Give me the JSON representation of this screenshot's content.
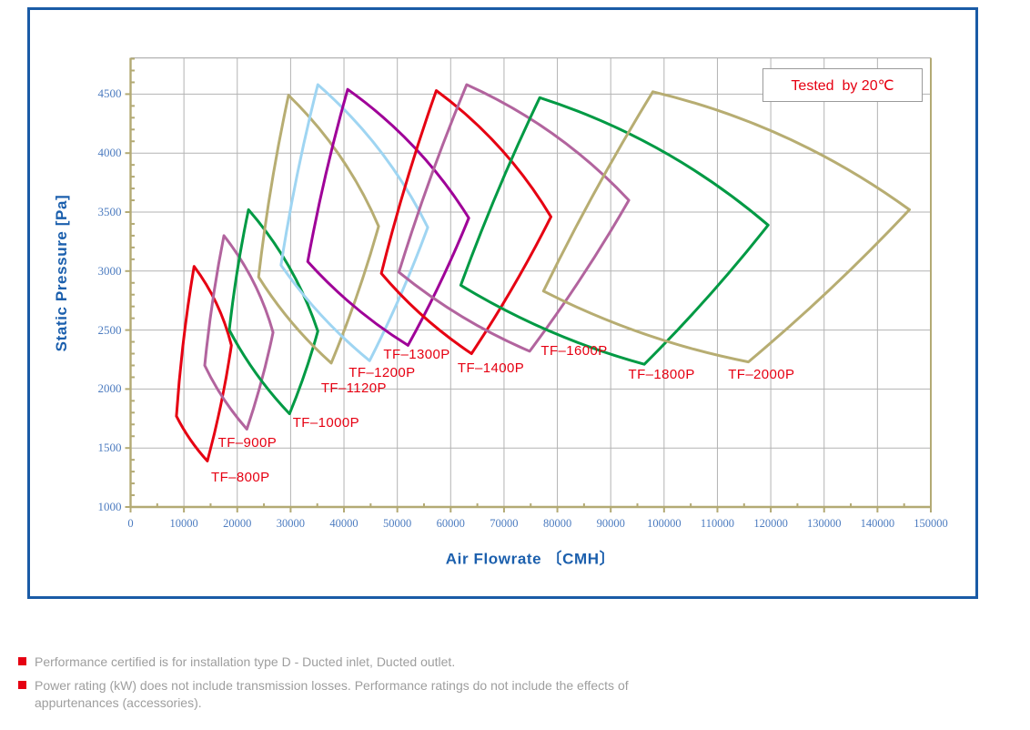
{
  "colors": {
    "outer_border_blue": "#1a5ba6",
    "axis_tan": "#b3aa74",
    "grid_gray": "#b3b3b3",
    "tick_label_blue": "#4d7cc0",
    "axis_title_blue": "#1b5fad",
    "label_red": "#e60012",
    "footnote_gray": "#9e9e9e",
    "legend_border_gray": "#9a9a9a"
  },
  "legend": {
    "text": "Tested  by 20℃"
  },
  "chart_data": {
    "type": "area",
    "subtype": "fan-performance-operating-envelopes",
    "title": "",
    "xlabel": "Air Flowrate 〔CMH〕",
    "ylabel": "Static Pressure [Pa]",
    "xlim": [
      0,
      150000
    ],
    "ylim": [
      1000,
      4800
    ],
    "grid": true,
    "x_ticks": [
      0,
      10000,
      20000,
      30000,
      40000,
      50000,
      60000,
      70000,
      80000,
      90000,
      100000,
      110000,
      120000,
      130000,
      140000,
      150000
    ],
    "y_ticks": [
      1000,
      1500,
      2000,
      2500,
      3000,
      3500,
      4000,
      4500
    ],
    "x_minor_step": 5000,
    "y_minor_step": 100,
    "envelope_vertex_order": [
      "top",
      "right",
      "bottom",
      "left"
    ],
    "units": {
      "x": "CMH",
      "y": "Pa"
    },
    "series": [
      {
        "name": "TF–800P",
        "color": "#e60012",
        "envelope": [
          [
            11900,
            3040
          ],
          [
            18900,
            2370
          ],
          [
            14400,
            1390
          ],
          [
            8600,
            1770
          ]
        ],
        "label_at": [
          15100,
          1320
        ]
      },
      {
        "name": "TF–900P",
        "color": "#b2649e",
        "envelope": [
          [
            17500,
            3300
          ],
          [
            26700,
            2480
          ],
          [
            21800,
            1660
          ],
          [
            13900,
            2200
          ]
        ],
        "label_at": [
          16400,
          1610
        ]
      },
      {
        "name": "TF–1000P",
        "color": "#009a44",
        "envelope": [
          [
            22100,
            3520
          ],
          [
            35100,
            2490
          ],
          [
            29800,
            1790
          ],
          [
            18500,
            2500
          ]
        ],
        "label_at": [
          30400,
          1780
        ]
      },
      {
        "name": "TF–1120P",
        "color": "#b7ad72",
        "envelope": [
          [
            29600,
            4490
          ],
          [
            46500,
            3380
          ],
          [
            37600,
            2220
          ],
          [
            24000,
            2950
          ]
        ],
        "label_at": [
          35700,
          2070
        ]
      },
      {
        "name": "TF–1200P",
        "color": "#9fd5f2",
        "envelope": [
          [
            35100,
            4580
          ],
          [
            55700,
            3370
          ],
          [
            44800,
            2240
          ],
          [
            28200,
            3050
          ]
        ],
        "label_at": [
          40900,
          2200
        ]
      },
      {
        "name": "TF–1300P",
        "color": "#9f0098",
        "envelope": [
          [
            40700,
            4540
          ],
          [
            63400,
            3450
          ],
          [
            52000,
            2370
          ],
          [
            33200,
            3080
          ]
        ],
        "label_at": [
          47400,
          2360
        ]
      },
      {
        "name": "TF–1400P",
        "color": "#e60012",
        "envelope": [
          [
            57300,
            4530
          ],
          [
            78800,
            3460
          ],
          [
            63900,
            2300
          ],
          [
            47000,
            2980
          ]
        ],
        "label_at": [
          61300,
          2240
        ]
      },
      {
        "name": "TF–1600P",
        "color": "#b2649e",
        "envelope": [
          [
            63000,
            4580
          ],
          [
            93400,
            3600
          ],
          [
            74800,
            2320
          ],
          [
            50300,
            2990
          ]
        ],
        "label_at": [
          76900,
          2390
        ]
      },
      {
        "name": "TF–1800P",
        "color": "#009a44",
        "envelope": [
          [
            76700,
            4470
          ],
          [
            119500,
            3390
          ],
          [
            96300,
            2210
          ],
          [
            61900,
            2880
          ]
        ],
        "label_at": [
          93300,
          2190
        ]
      },
      {
        "name": "TF–2000P",
        "color": "#b7ad72",
        "envelope": [
          [
            97900,
            4520
          ],
          [
            146000,
            3520
          ],
          [
            115800,
            2230
          ],
          [
            77400,
            2830
          ]
        ],
        "label_at": [
          112000,
          2190
        ]
      }
    ]
  },
  "footnotes": [
    {
      "lines": [
        "Performance certified is for installation type D - Ducted inlet, Ducted outlet."
      ]
    },
    {
      "lines": [
        "Power rating (kW) does not include transmission losses. Performance ratings do not include the effects of",
        "appurtenances (accessories)."
      ]
    }
  ]
}
